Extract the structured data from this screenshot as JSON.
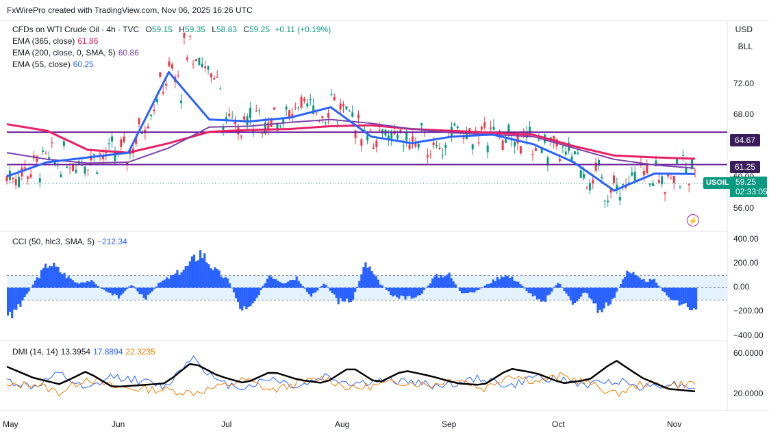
{
  "header": {
    "credit": "FxWirePro created with TradingView.com, Nov 06, 2025 16:26 UTC"
  },
  "price_pane": {
    "symbol_line": "CFDs on WTI Crude Oil · 4h · TVC",
    "ohlc": {
      "o_label": "O",
      "o": "59.15",
      "h_label": "H",
      "h": "59.35",
      "l_label": "L",
      "l": "58.83",
      "c_label": "C",
      "c": "59.25",
      "chg": "+0.11 (+0.19%)"
    },
    "ema365": {
      "label": "EMA (365, close)",
      "value": "61.86",
      "color": "#e91e63"
    },
    "ema200": {
      "label": "EMA (200, close, 0, SMA, 5)",
      "value": "60.86",
      "color": "#7b3fa8"
    },
    "ema55": {
      "label": "EMA (55, close)",
      "value": "60.25",
      "color": "#2962ff"
    },
    "currency": "USD",
    "unit": "BLL",
    "symbol_tag": "USOIL",
    "last_price": "59.25",
    "countdown": "02:33:05",
    "level_upper": "64.67",
    "level_lower": "61.25",
    "hline_color": "#6a1b9a",
    "y_ticks": [
      "72.00",
      "68.00",
      "60.00",
      "56.00"
    ]
  },
  "cci_pane": {
    "label": "CCI (50, hlc3, SMA, 5)",
    "value": "−212.34",
    "y_ticks": [
      "400.00",
      "200.00",
      "0.00",
      "−200.00",
      "−400.00"
    ],
    "color": "#2962ff"
  },
  "dmi_pane": {
    "label": "DMI (14, 14)",
    "adx": "13.3954",
    "plus_di": "17.8894",
    "minus_di": "22.3235",
    "y_ticks": [
      "60.0000",
      "20.0000"
    ],
    "adx_color": "#000000",
    "plus_color": "#2962ff",
    "minus_color": "#f57c00"
  },
  "x_axis": [
    "May",
    "Jun",
    "Jul",
    "Aug",
    "Sep",
    "Oct",
    "Nov"
  ],
  "chart_data": [
    {
      "type": "line",
      "title": "CFDs on WTI Crude Oil · 4h · TVC",
      "x": [
        "May",
        "May",
        "Jun",
        "Jun",
        "Jun",
        "Jun",
        "Jul",
        "Jul",
        "Aug",
        "Aug",
        "Aug",
        "Sep",
        "Sep",
        "Oct",
        "Oct",
        "Oct",
        "Nov",
        "Nov"
      ],
      "series": [
        {
          "name": "EMA (365, close)",
          "values": [
            65.5,
            64.8,
            62.8,
            62.5,
            63.5,
            64.7,
            64.9,
            65.0,
            65.3,
            65.4,
            65.0,
            64.8,
            64.6,
            64.4,
            63.2,
            62.2,
            62.0,
            61.86
          ]
        },
        {
          "name": "EMA (200, close, 0, SMA, 5)",
          "values": [
            62.5,
            61.8,
            61.4,
            61.5,
            63.0,
            65.2,
            65.3,
            65.7,
            66.0,
            65.6,
            65.0,
            64.6,
            64.4,
            64.2,
            63.0,
            61.8,
            61.2,
            60.86
          ]
        },
        {
          "name": "EMA (55, close)",
          "values": [
            60.0,
            61.5,
            62.0,
            62.5,
            71.0,
            66.0,
            65.8,
            66.2,
            67.3,
            64.2,
            63.5,
            64.2,
            64.4,
            63.4,
            61.5,
            58.5,
            60.3,
            60.25
          ]
        }
      ],
      "candles_summary": {
        "min": 56.5,
        "max": 75.2,
        "last_close": 59.25
      },
      "horizontal_levels": [
        64.67,
        61.25
      ],
      "ylim": [
        55,
        75
      ]
    },
    {
      "type": "bar",
      "title": "CCI (50, hlc3, SMA, 5)",
      "values": [
        -250,
        -120,
        60,
        210,
        120,
        40,
        60,
        -20,
        -80,
        30,
        -100,
        40,
        100,
        170,
        300,
        150,
        60,
        -190,
        -100,
        110,
        40,
        90,
        -80,
        40,
        -110,
        -110,
        200,
        40,
        -70,
        -90,
        -60,
        90,
        120,
        -60,
        -30,
        40,
        110,
        60,
        -60,
        -110,
        50,
        -140,
        -30,
        -210,
        -90,
        150,
        60,
        60,
        -90,
        -130,
        -212.34
      ],
      "ylim": [
        -400,
        400
      ],
      "bands": [
        100,
        -100
      ]
    },
    {
      "type": "line",
      "title": "DMI (14, 14)",
      "series": [
        {
          "name": "ADX",
          "values": [
            40,
            28,
            21,
            35,
            18,
            20,
            22,
            45,
            30,
            22,
            35,
            26,
            22,
            40,
            22,
            36,
            30,
            22,
            20,
            38,
            33,
            22,
            26,
            47,
            28,
            16,
            13.4
          ]
        },
        {
          "name": "+DI",
          "values": [
            25,
            18,
            32,
            14,
            30,
            25,
            18,
            52,
            22,
            18,
            28,
            18,
            30,
            22,
            24,
            25,
            20,
            22,
            28,
            18,
            30,
            25,
            20,
            26,
            18,
            22,
            17.9
          ]
        },
        {
          "name": "−DI",
          "values": [
            18,
            22,
            12,
            28,
            18,
            16,
            15,
            12,
            18,
            26,
            14,
            22,
            28,
            16,
            20,
            24,
            20,
            28,
            16,
            32,
            24,
            30,
            22,
            10,
            22,
            20,
            22.3
          ]
        }
      ],
      "ylim": [
        0,
        65
      ]
    }
  ]
}
